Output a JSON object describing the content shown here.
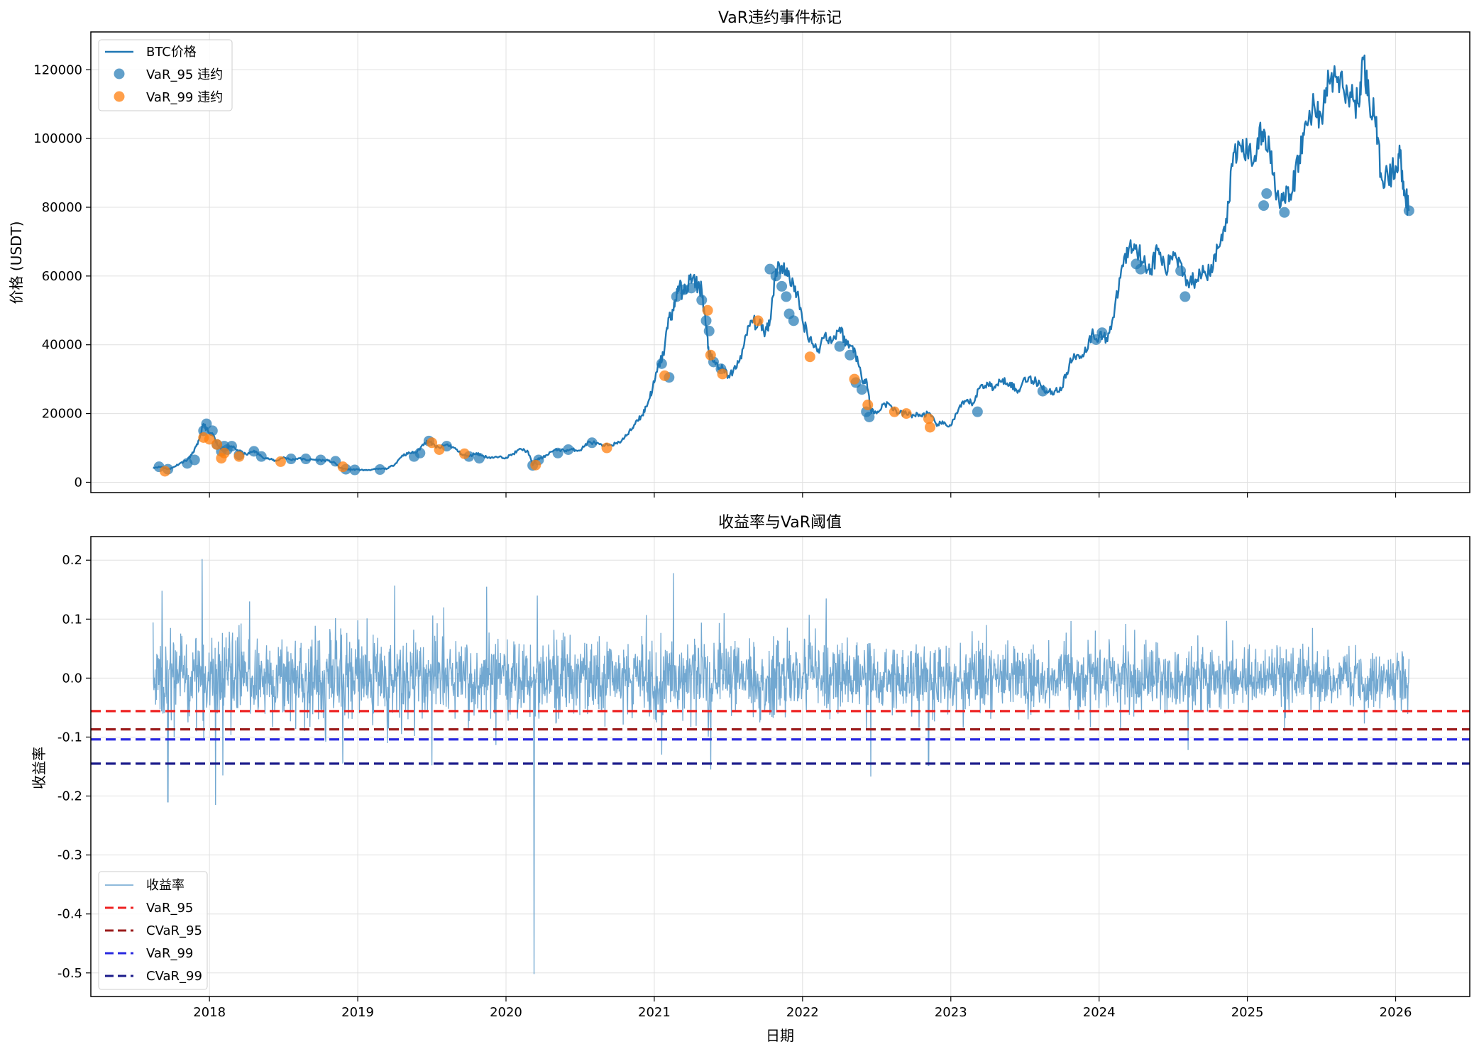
{
  "chart_data": [
    {
      "type": "line",
      "title": "VaR违约事件标记",
      "xlabel": "",
      "ylabel": "价格 (USDT)",
      "xlim": [
        2017.2,
        2026.5
      ],
      "ylim": [
        -3000,
        131000
      ],
      "yticks": [
        0,
        20000,
        40000,
        60000,
        80000,
        100000,
        120000
      ],
      "xticks": [
        2018,
        2019,
        2020,
        2021,
        2022,
        2023,
        2024,
        2025,
        2026
      ],
      "grid": true,
      "legend_position": "upper-left",
      "colors": {
        "price": "#1f77b4",
        "var95": "#1f77b4",
        "var99": "#ff7f0e"
      },
      "series": [
        {
          "name": "BTC价格",
          "kind": "line",
          "x": [
            2017.62,
            2017.68,
            2017.72,
            2017.75,
            2017.8,
            2017.85,
            2017.88,
            2017.92,
            2017.96,
            2018.0,
            2018.03,
            2018.06,
            2018.1,
            2018.15,
            2018.2,
            2018.25,
            2018.3,
            2018.35,
            2018.4,
            2018.45,
            2018.5,
            2018.55,
            2018.6,
            2018.65,
            2018.7,
            2018.75,
            2018.8,
            2018.85,
            2018.88,
            2018.92,
            2018.96,
            2019.0,
            2019.05,
            2019.1,
            2019.15,
            2019.2,
            2019.25,
            2019.3,
            2019.35,
            2019.4,
            2019.45,
            2019.48,
            2019.52,
            2019.55,
            2019.6,
            2019.65,
            2019.7,
            2019.75,
            2019.8,
            2019.85,
            2019.9,
            2019.95,
            2020.0,
            2020.05,
            2020.1,
            2020.15,
            2020.18,
            2020.2,
            2020.25,
            2020.3,
            2020.35,
            2020.4,
            2020.45,
            2020.5,
            2020.55,
            2020.6,
            2020.65,
            2020.7,
            2020.75,
            2020.8,
            2020.85,
            2020.88,
            2020.92,
            2020.96,
            2021.0,
            2021.03,
            2021.06,
            2021.1,
            2021.13,
            2021.16,
            2021.2,
            2021.24,
            2021.28,
            2021.32,
            2021.35,
            2021.37,
            2021.4,
            2021.45,
            2021.5,
            2021.55,
            2021.6,
            2021.65,
            2021.7,
            2021.75,
            2021.78,
            2021.82,
            2021.86,
            2021.9,
            2021.95,
            2022.0,
            2022.05,
            2022.1,
            2022.15,
            2022.2,
            2022.25,
            2022.3,
            2022.35,
            2022.4,
            2022.43,
            2022.46,
            2022.5,
            2022.55,
            2022.6,
            2022.65,
            2022.7,
            2022.75,
            2022.8,
            2022.85,
            2022.9,
            2022.95,
            2023.0,
            2023.05,
            2023.1,
            2023.15,
            2023.2,
            2023.25,
            2023.3,
            2023.35,
            2023.4,
            2023.45,
            2023.5,
            2023.55,
            2023.6,
            2023.65,
            2023.7,
            2023.75,
            2023.8,
            2023.85,
            2023.9,
            2023.95,
            2024.0,
            2024.05,
            2024.1,
            2024.15,
            2024.2,
            2024.25,
            2024.3,
            2024.35,
            2024.4,
            2024.45,
            2024.5,
            2024.55,
            2024.6,
            2024.65,
            2024.7,
            2024.75,
            2024.8,
            2024.85,
            2024.9,
            2024.95,
            2025.0,
            2025.05,
            2025.1,
            2025.15,
            2025.2,
            2025.25,
            2025.3,
            2025.35,
            2025.4,
            2025.45,
            2025.5,
            2025.55,
            2025.6,
            2025.65,
            2025.7,
            2025.75,
            2025.78,
            2025.82,
            2025.86,
            2025.9,
            2025.95,
            2026.0,
            2026.03,
            2026.06,
            2026.09
          ],
          "y": [
            4300,
            4500,
            3800,
            4200,
            5500,
            6500,
            8000,
            11000,
            17000,
            14000,
            13500,
            10500,
            9000,
            10500,
            9000,
            8000,
            9200,
            7500,
            6800,
            6200,
            7300,
            6500,
            7000,
            6500,
            6600,
            6400,
            6300,
            5500,
            4200,
            3800,
            3700,
            3700,
            3500,
            3700,
            3900,
            4000,
            5200,
            7800,
            8500,
            8800,
            11500,
            12000,
            10500,
            10000,
            11000,
            10000,
            8200,
            7500,
            8500,
            7500,
            7200,
            7300,
            7200,
            8300,
            9700,
            8800,
            5000,
            6500,
            7200,
            8800,
            9500,
            9200,
            9500,
            9300,
            11500,
            11500,
            10500,
            11000,
            11200,
            13000,
            15500,
            18000,
            19500,
            23500,
            29000,
            34000,
            37000,
            48000,
            50000,
            57000,
            55000,
            59000,
            58000,
            56000,
            45000,
            37000,
            35000,
            33000,
            31000,
            33000,
            39000,
            47000,
            46000,
            44000,
            47000,
            62000,
            63000,
            60000,
            57000,
            47000,
            42000,
            38000,
            43000,
            41000,
            45000,
            40000,
            39000,
            30000,
            30000,
            21000,
            20000,
            23000,
            22000,
            20000,
            20000,
            19500,
            19500,
            20000,
            17000,
            17000,
            16500,
            21000,
            23500,
            23000,
            28000,
            28500,
            27500,
            30000,
            29000,
            26000,
            30500,
            29500,
            29000,
            26000,
            26500,
            27500,
            34500,
            37000,
            37500,
            43000,
            42500,
            42000,
            48000,
            62000,
            68000,
            69000,
            64000,
            62000,
            68000,
            61000,
            67000,
            64000,
            58000,
            59000,
            63000,
            60000,
            68000,
            73000,
            92000,
            98000,
            96000,
            95000,
            102000,
            97000,
            84000,
            82000,
            84000,
            95000,
            104000,
            110000,
            106000,
            117000,
            118000,
            114000,
            112000,
            110000,
            123000,
            112000,
            106000,
            90000,
            88000,
            92000,
            95000,
            85000,
            79000
          ]
        },
        {
          "name": "VaR_95 违约",
          "kind": "scatter",
          "x": [
            2017.66,
            2017.72,
            2017.85,
            2017.9,
            2017.96,
            2017.98,
            2018.02,
            2018.05,
            2018.08,
            2018.1,
            2018.12,
            2018.15,
            2018.2,
            2018.3,
            2018.35,
            2018.55,
            2018.65,
            2018.75,
            2018.85,
            2018.92,
            2018.98,
            2019.15,
            2019.38,
            2019.42,
            2019.48,
            2019.6,
            2019.75,
            2019.82,
            2020.18,
            2020.22,
            2020.35,
            2020.42,
            2020.58,
            2021.05,
            2021.1,
            2021.15,
            2021.2,
            2021.25,
            2021.32,
            2021.35,
            2021.37,
            2021.4,
            2021.45,
            2021.78,
            2021.82,
            2021.86,
            2021.89,
            2021.91,
            2021.94,
            2022.25,
            2022.32,
            2022.36,
            2022.4,
            2022.43,
            2022.45,
            2023.18,
            2023.62,
            2023.98,
            2024.02,
            2024.25,
            2024.28,
            2024.55,
            2024.58,
            2025.11,
            2025.13,
            2025.25,
            2026.09
          ],
          "y": [
            4500,
            3800,
            5500,
            6500,
            15000,
            17000,
            15000,
            11000,
            9000,
            10500,
            9500,
            10500,
            8000,
            9000,
            7500,
            6800,
            6800,
            6500,
            6100,
            3800,
            3600,
            3700,
            7500,
            8500,
            12000,
            10500,
            7500,
            7000,
            4900,
            6500,
            8500,
            9500,
            11500,
            34500,
            30500,
            54000,
            56000,
            56500,
            53000,
            47000,
            44000,
            35000,
            33000,
            62000,
            60000,
            57000,
            54000,
            49000,
            47000,
            39500,
            37000,
            29000,
            27000,
            20500,
            19000,
            20500,
            26500,
            41500,
            43500,
            63500,
            62000,
            61500,
            54000,
            80500,
            84000,
            78500,
            79000
          ]
        },
        {
          "name": "VaR_99 违约",
          "kind": "scatter",
          "x": [
            2017.7,
            2017.96,
            2018.0,
            2018.05,
            2018.08,
            2018.1,
            2018.2,
            2018.48,
            2018.9,
            2019.5,
            2019.55,
            2019.72,
            2020.2,
            2020.68,
            2021.07,
            2021.36,
            2021.38,
            2021.46,
            2021.7,
            2022.05,
            2022.35,
            2022.44,
            2022.62,
            2022.7,
            2022.85,
            2022.86
          ],
          "y": [
            3200,
            13000,
            12500,
            11000,
            7000,
            8500,
            7500,
            6000,
            4500,
            11500,
            9500,
            8300,
            5000,
            10000,
            31000,
            50000,
            37000,
            31500,
            47000,
            36500,
            30000,
            22500,
            20500,
            20000,
            18500,
            16000
          ]
        }
      ]
    },
    {
      "type": "line",
      "title": "收益率与VaR阈值",
      "xlabel": "日期",
      "ylabel": "收益率",
      "xlim": [
        2017.2,
        2026.5
      ],
      "ylim": [
        -0.54,
        0.24
      ],
      "yticks": [
        -0.5,
        -0.4,
        -0.3,
        -0.2,
        -0.1,
        0.0,
        0.1,
        0.2
      ],
      "yticklabels": [
        "-0.5",
        "-0.4",
        "-0.3",
        "-0.2",
        "-0.1",
        "0.0",
        "0.1",
        "0.2"
      ],
      "xticks": [
        2018,
        2019,
        2020,
        2021,
        2022,
        2023,
        2024,
        2025,
        2026
      ],
      "grid": true,
      "legend_position": "lower-left",
      "colors": {
        "returns": "#6aa3cf",
        "VaR_95": "#ee2222",
        "CVaR_95": "#9b1c1c",
        "VaR_99": "#2a2ae0",
        "CVaR_99": "#1a1a8a"
      },
      "returns_range": [
        2017.62,
        2026.09
      ],
      "returns_std": 0.033,
      "spikes": [
        {
          "x": 2017.72,
          "y": -0.21
        },
        {
          "x": 2017.68,
          "y": 0.148
        },
        {
          "x": 2017.95,
          "y": 0.202
        },
        {
          "x": 2018.04,
          "y": -0.215
        },
        {
          "x": 2018.09,
          "y": -0.165
        },
        {
          "x": 2018.27,
          "y": 0.13
        },
        {
          "x": 2018.9,
          "y": -0.145
        },
        {
          "x": 2019.0,
          "y": 0.098
        },
        {
          "x": 2019.25,
          "y": 0.157
        },
        {
          "x": 2019.5,
          "y": -0.148
        },
        {
          "x": 2019.58,
          "y": 0.12
        },
        {
          "x": 2019.87,
          "y": 0.155
        },
        {
          "x": 2020.19,
          "y": -0.502
        },
        {
          "x": 2020.21,
          "y": 0.14
        },
        {
          "x": 2021.05,
          "y": -0.13
        },
        {
          "x": 2021.13,
          "y": 0.178
        },
        {
          "x": 2021.38,
          "y": -0.155
        },
        {
          "x": 2021.47,
          "y": 0.11
        },
        {
          "x": 2022.16,
          "y": 0.135
        },
        {
          "x": 2022.46,
          "y": -0.167
        },
        {
          "x": 2022.85,
          "y": -0.148
        },
        {
          "x": 2023.24,
          "y": 0.09
        },
        {
          "x": 2024.18,
          "y": 0.092
        },
        {
          "x": 2024.6,
          "y": -0.122
        },
        {
          "x": 2024.86,
          "y": 0.097
        },
        {
          "x": 2025.25,
          "y": -0.09
        },
        {
          "x": 2025.44,
          "y": 0.085
        }
      ],
      "series": [
        {
          "name": "收益率",
          "kind": "line"
        },
        {
          "name": "VaR_95",
          "kind": "hline",
          "value": -0.056
        },
        {
          "name": "CVaR_95",
          "kind": "hline",
          "value": -0.087
        },
        {
          "name": "VaR_99",
          "kind": "hline",
          "value": -0.104
        },
        {
          "name": "CVaR_99",
          "kind": "hline",
          "value": -0.145
        }
      ]
    }
  ]
}
